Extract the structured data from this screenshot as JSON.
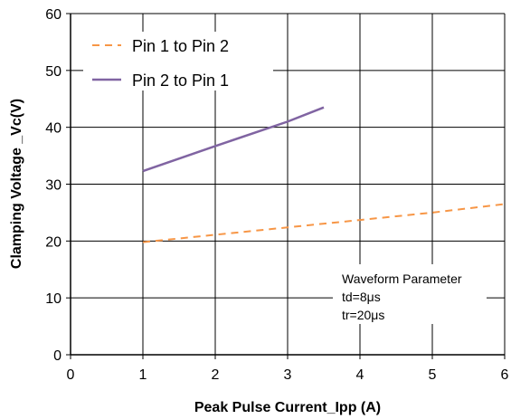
{
  "chart_data": {
    "type": "line",
    "xlabel": "Peak Pulse Current_Ipp (A)",
    "ylabel": "Clamping Voltage _Vc(V)",
    "xlim": [
      0,
      6
    ],
    "ylim": [
      0,
      60
    ],
    "x_ticks": [
      0,
      1,
      2,
      3,
      4,
      5,
      6
    ],
    "y_ticks": [
      0,
      10,
      20,
      30,
      40,
      50,
      60
    ],
    "grid": true,
    "legend_position": "top-left",
    "series": [
      {
        "name": "Pin 1 to Pin 2",
        "style": "dashed",
        "color": "#f79646",
        "x": [
          1,
          2,
          3,
          4,
          5,
          6
        ],
        "y": [
          19.8,
          21.1,
          22.4,
          23.7,
          25.0,
          26.5
        ]
      },
      {
        "name": "Pin 2 to Pin 1",
        "style": "solid",
        "color": "#8064a2",
        "x": [
          1,
          2,
          3,
          3.5
        ],
        "y": [
          32.3,
          36.7,
          41.0,
          43.5
        ]
      }
    ],
    "annotation": {
      "lines": [
        "Waveform Parameter",
        "td=8μs",
        "tr=20μs"
      ]
    }
  }
}
